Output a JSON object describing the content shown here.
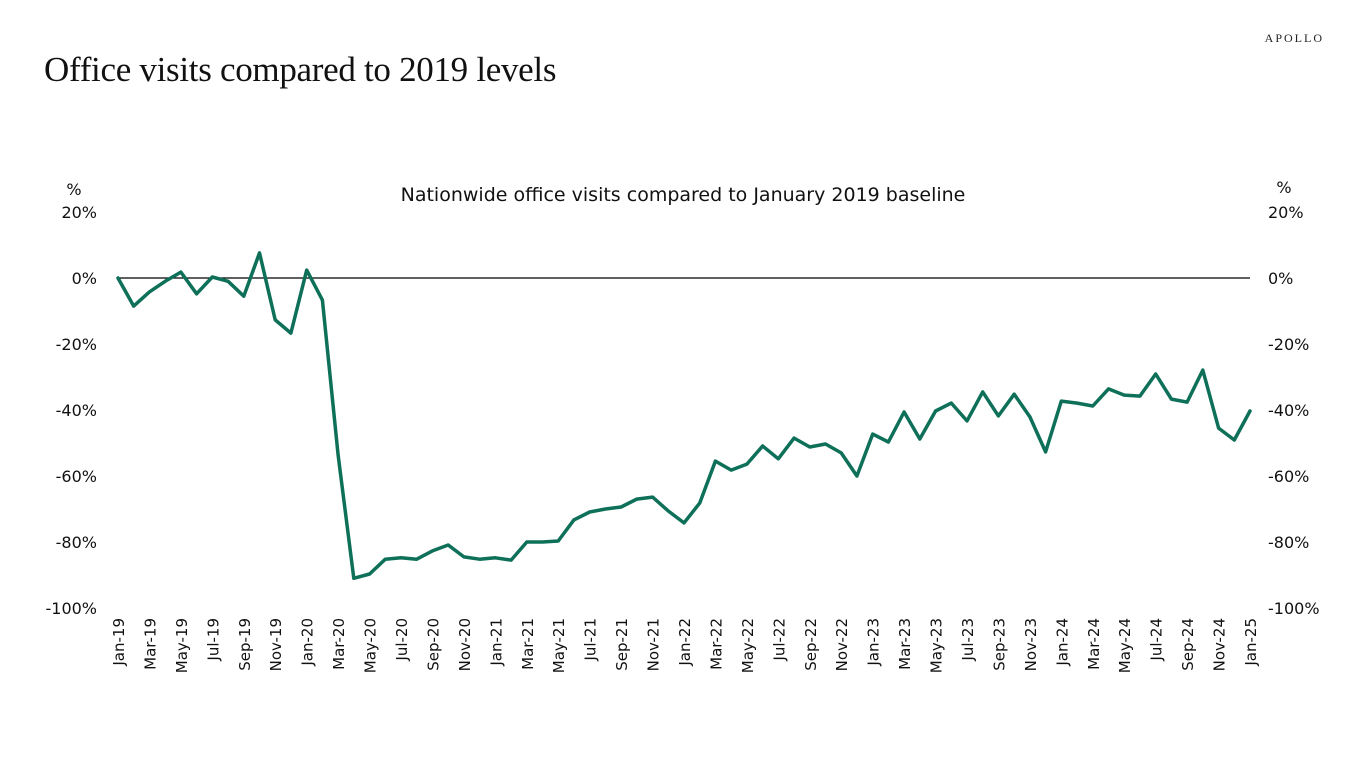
{
  "header": {
    "title": "Office visits compared to 2019 levels",
    "brand": "APOLLO"
  },
  "colors": {
    "series": "#0e7058",
    "zero_line": "#000000"
  },
  "chart_data": {
    "type": "line",
    "title": "Nationwide office visits compared to January 2019 baseline",
    "ylabel_left": "%",
    "ylabel_right": "%",
    "ylim": [
      -100,
      20
    ],
    "yticks": [
      20,
      0,
      -20,
      -40,
      -60,
      -80,
      -100
    ],
    "ytick_labels": [
      "20%",
      "0%",
      "-20%",
      "-40%",
      "-60%",
      "-80%",
      "-100%"
    ],
    "xtick_labels": [
      "Jan-19",
      "Mar-19",
      "May-19",
      "Jul-19",
      "Sep-19",
      "Nov-19",
      "Jan-20",
      "Mar-20",
      "May-20",
      "Jul-20",
      "Sep-20",
      "Nov-20",
      "Jan-21",
      "Mar-21",
      "May-21",
      "Jul-21",
      "Sep-21",
      "Nov-21",
      "Jan-22",
      "Mar-22",
      "May-22",
      "Jul-22",
      "Sep-22",
      "Nov-22",
      "Jan-23",
      "Mar-23",
      "May-23",
      "Jul-23",
      "Sep-23",
      "Nov-23",
      "Jan-24",
      "Mar-24",
      "May-24",
      "Jul-24",
      "Sep-24",
      "Nov-24",
      "Jan-25"
    ],
    "grid": false,
    "legend": "none",
    "series": [
      {
        "name": "Office visits vs Jan 2019",
        "values": [
          0,
          -8.5,
          -4.2,
          -1,
          1.8,
          -4.8,
          0.3,
          -1,
          -5.5,
          7.6,
          -12.7,
          -16.7,
          2.4,
          -6.7,
          -53.6,
          -91,
          -89.7,
          -85.2,
          -84.8,
          -85.2,
          -82.7,
          -80.9,
          -84.5,
          -85.2,
          -84.8,
          -85.5,
          -80,
          -80,
          -79.7,
          -73.3,
          -70.9,
          -70,
          -69.4,
          -67,
          -66.4,
          -70.6,
          -74.2,
          -68.2,
          -55.5,
          -58.2,
          -56.4,
          -50.9,
          -54.8,
          -48.5,
          -51.2,
          -50.3,
          -53,
          -60,
          -47.3,
          -49.7,
          -40.6,
          -48.8,
          -40.3,
          -37.9,
          -43.3,
          -34.5,
          -41.8,
          -35.2,
          -42.1,
          -52.7,
          -37.3,
          -37.9,
          -38.8,
          -33.6,
          -35.5,
          -35.8,
          -29.1,
          -36.7,
          -37.6,
          -27.9,
          -45.5,
          -49.1,
          -40.3
        ]
      }
    ]
  }
}
